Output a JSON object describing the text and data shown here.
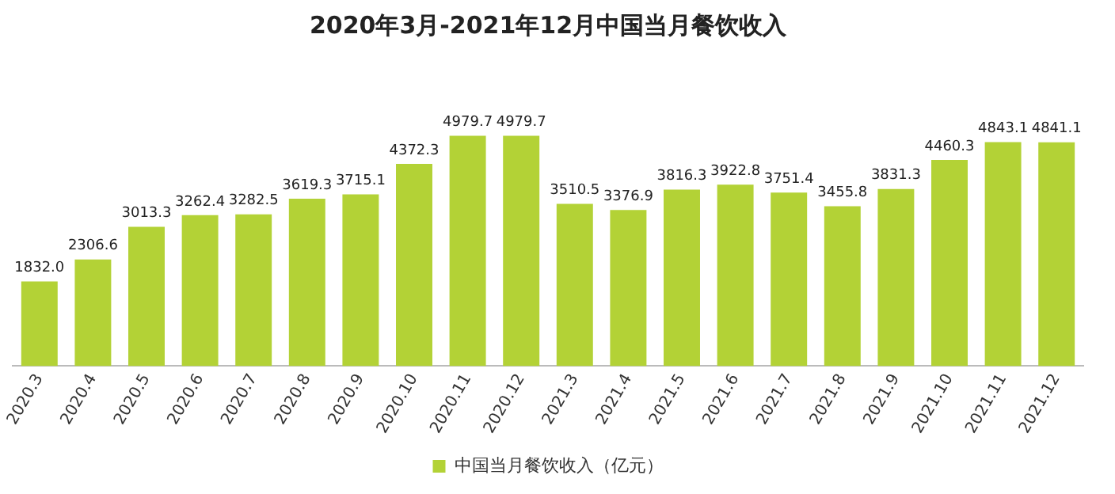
{
  "chart_data": {
    "type": "bar",
    "title": "2020年3月-2021年12月中国当月餐饮收入",
    "categories": [
      "2020.3",
      "2020.4",
      "2020.5",
      "2020.6",
      "2020.7",
      "2020.8",
      "2020.9",
      "2020.10",
      "2020.11",
      "2020.12",
      "2021.3",
      "2021.4",
      "2021.5",
      "2021.6",
      "2021.7",
      "2021.8",
      "2021.9",
      "2021.10",
      "2021.11",
      "2021.12"
    ],
    "series": [
      {
        "name": "中国当月餐饮收入（亿元）",
        "color": "#b3d236",
        "values": [
          1832.0,
          2306.6,
          3013.3,
          3262.4,
          3282.5,
          3619.3,
          3715.1,
          4372.3,
          4979.7,
          4979.7,
          3510.5,
          3376.9,
          3816.3,
          3922.8,
          3751.4,
          3455.8,
          3831.3,
          4460.3,
          4843.1,
          4841.1
        ],
        "value_labels": [
          "1832.0",
          "2306.6",
          "3013.3",
          "3262.4",
          "3282.5",
          "3619.3",
          "3715.1",
          "4372.3",
          "4979.7",
          "4979.7",
          "3510.5",
          "3376.9",
          "3816.3",
          "3922.8",
          "3751.4",
          "3455.8",
          "3831.3",
          "4460.3",
          "4843.1",
          "4841.1"
        ]
      }
    ],
    "legend": "bottom",
    "grid": false
  }
}
